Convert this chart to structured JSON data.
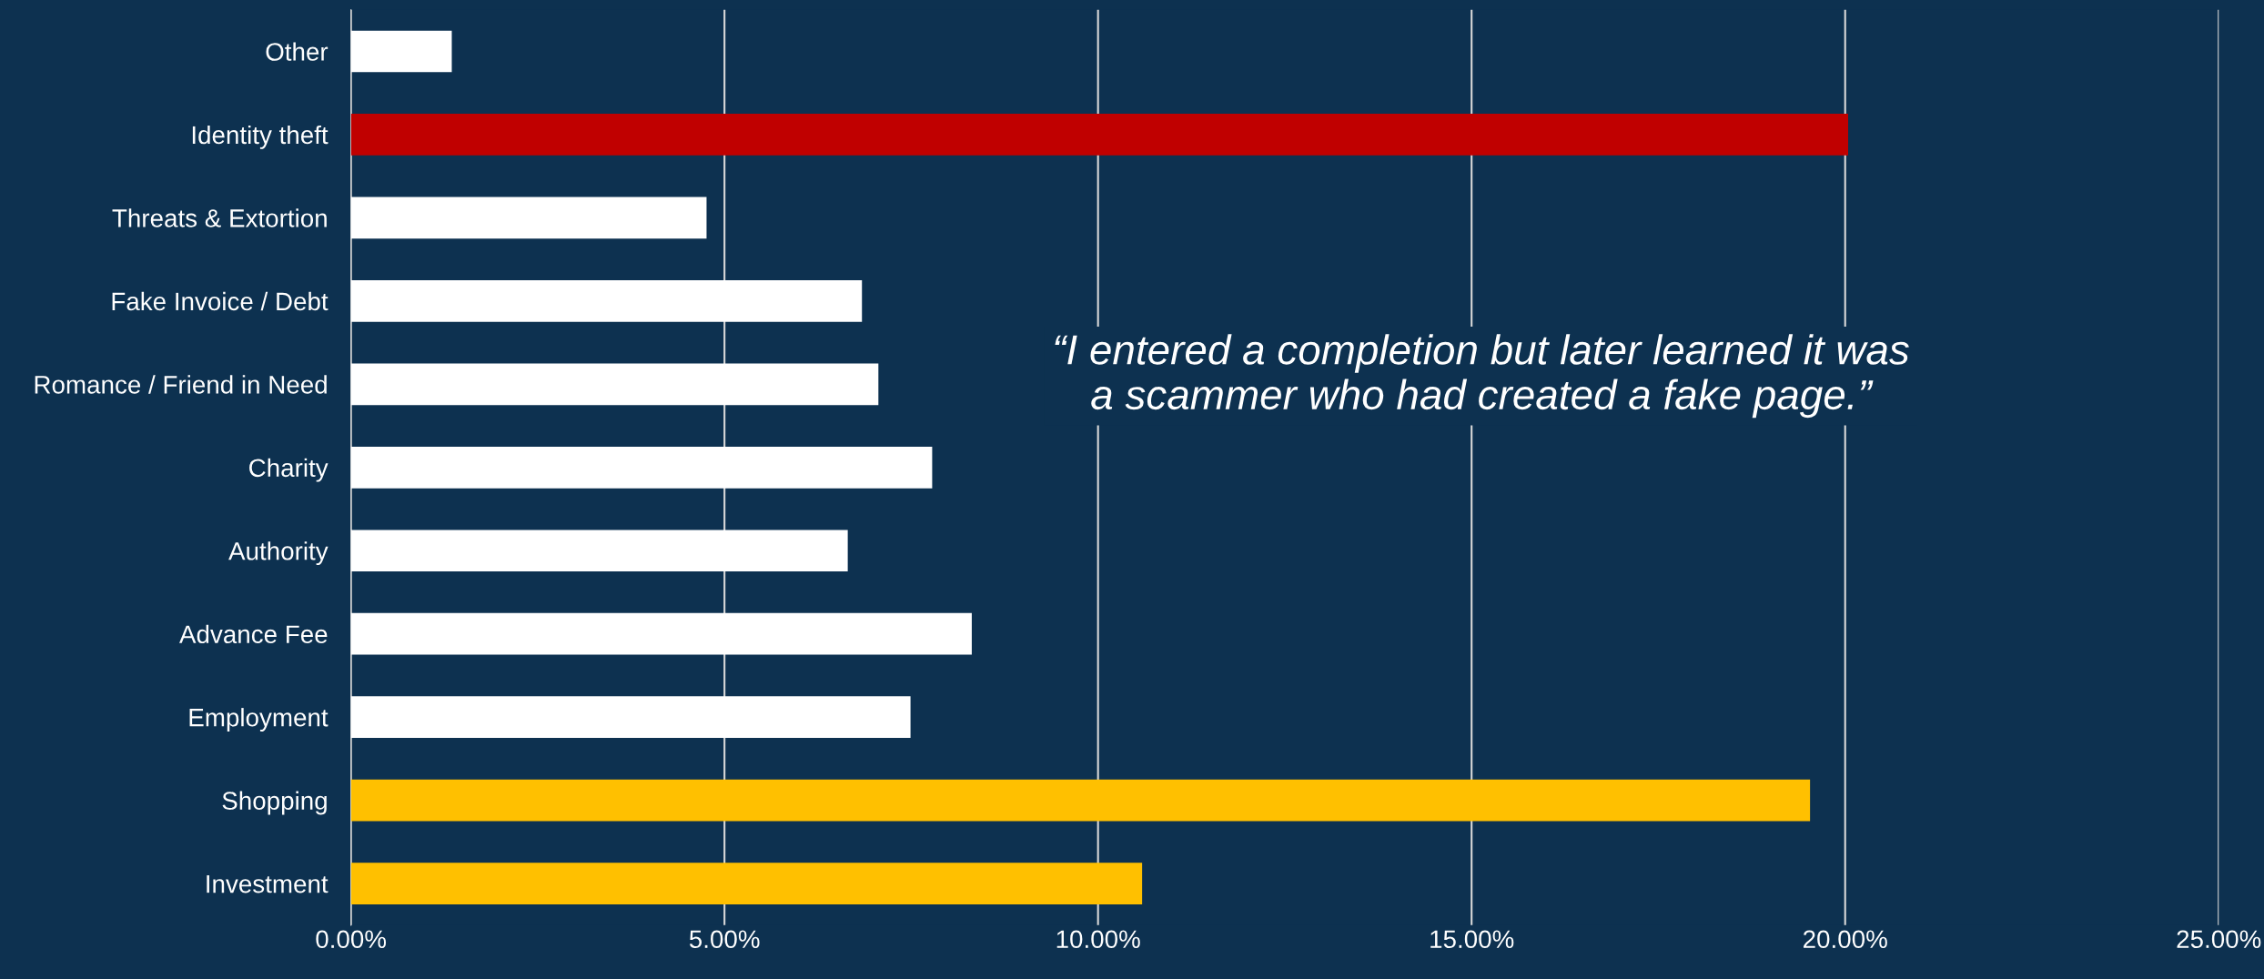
{
  "chart_data": {
    "type": "bar",
    "orientation": "horizontal",
    "categories": [
      "Other",
      "Identity theft",
      "Threats & Extortion",
      "Fake Invoice / Debt",
      "Romance / Friend in Need",
      "Charity",
      "Authority",
      "Advance Fee",
      "Employment",
      "Shopping",
      "Investment"
    ],
    "values": [
      1.35,
      20.04,
      4.76,
      6.84,
      7.06,
      7.78,
      6.65,
      8.31,
      7.49,
      19.53,
      10.59
    ],
    "colors": [
      "#ffffff",
      "#c00000",
      "#ffffff",
      "#ffffff",
      "#ffffff",
      "#ffffff",
      "#ffffff",
      "#ffffff",
      "#ffffff",
      "#ffc000",
      "#ffc000"
    ],
    "xlim": [
      0,
      25
    ],
    "xticks": [
      {
        "value": 0,
        "label": "0.00%"
      },
      {
        "value": 5,
        "label": "5.00%"
      },
      {
        "value": 10,
        "label": "10.00%"
      },
      {
        "value": 15,
        "label": "15.00%"
      },
      {
        "value": 20,
        "label": "20.00%"
      },
      {
        "value": 25,
        "label": "25.00%"
      }
    ],
    "grid": "x",
    "annotations": [
      "“I entered a completion but later learned it was a scammer who had created a fake page.”"
    ]
  }
}
